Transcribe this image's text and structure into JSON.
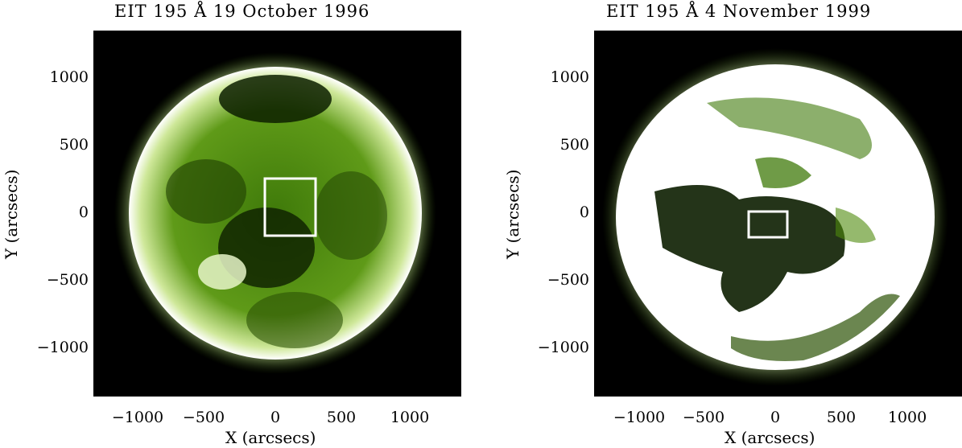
{
  "panels": [
    {
      "title": "EIT 195 Å   19 October 1996",
      "xlabel": "X (arcsecs)",
      "ylabel": "Y (arcsecs)",
      "xticks": [
        "−1000",
        "−500",
        "0",
        "500",
        "1000"
      ],
      "yticks": [
        "1000",
        "500",
        "0",
        "−500",
        "−1000"
      ]
    },
    {
      "title": "EIT 195 Å  4 November  1999",
      "xlabel": "X (arcsecs)",
      "ylabel": "Y (arcsecs)",
      "xticks": [
        "−1000",
        "−500",
        "0",
        "500",
        "1000"
      ],
      "yticks": [
        "1000",
        "500",
        "0",
        "−500",
        "−1000"
      ]
    }
  ],
  "colors": {
    "sky": "#000000",
    "disk_dark": "#0c1e00",
    "disk_mid": "#4f8a0c",
    "disk_bright": "#b8e07a",
    "limb": "#ffffff",
    "box": "#ffffff"
  }
}
